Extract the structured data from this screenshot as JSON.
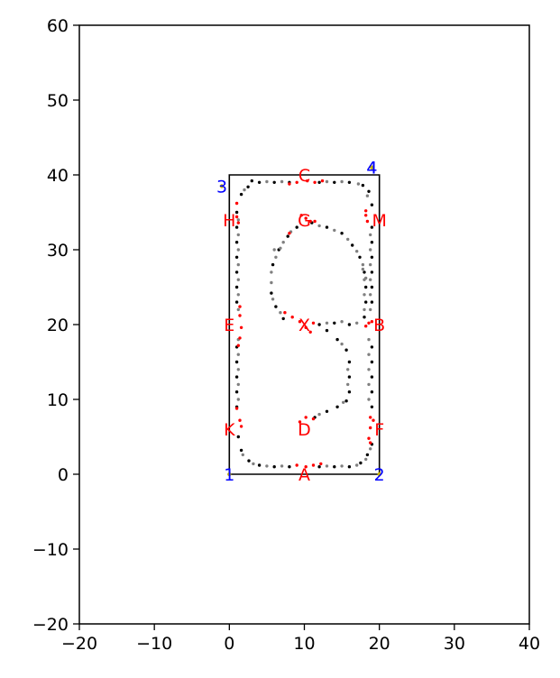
{
  "chart_data": {
    "type": "scatter",
    "xlim": [
      -20,
      40
    ],
    "ylim": [
      -20,
      60
    ],
    "xticks": [
      -20,
      -10,
      0,
      10,
      20,
      30,
      40
    ],
    "yticks": [
      -20,
      -10,
      0,
      10,
      20,
      30,
      40,
      50,
      60
    ],
    "xtick_labels": [
      "−20",
      "−10",
      "0",
      "10",
      "20",
      "30",
      "40"
    ],
    "ytick_labels": [
      "−20",
      "−10",
      "0",
      "10",
      "20",
      "30",
      "40",
      "50",
      "60"
    ],
    "grid": false,
    "legend": "none",
    "boundary": {
      "corners": [
        [
          0,
          0
        ],
        [
          20,
          0
        ],
        [
          20,
          40
        ],
        [
          0,
          40
        ]
      ],
      "color": "#000000"
    },
    "corner_labels": [
      {
        "text": "1",
        "x": 0,
        "y": 0
      },
      {
        "text": "2",
        "x": 20,
        "y": 0
      },
      {
        "text": "3",
        "x": -1,
        "y": 38.5
      },
      {
        "text": "4",
        "x": 19,
        "y": 41
      },
      {
        "text": "4",
        "x": 19,
        "y": 41
      }
    ],
    "corner_label_color": "#0000ff",
    "corner_marker_color": "#c8b400",
    "point_labels": [
      {
        "text": "A",
        "x": 10,
        "y": 0
      },
      {
        "text": "B",
        "x": 20,
        "y": 20
      },
      {
        "text": "C",
        "x": 10,
        "y": 40
      },
      {
        "text": "D",
        "x": 10,
        "y": 6
      },
      {
        "text": "E",
        "x": 0,
        "y": 20
      },
      {
        "text": "F",
        "x": 20,
        "y": 6
      },
      {
        "text": "G",
        "x": 10,
        "y": 34
      },
      {
        "text": "H",
        "x": 0,
        "y": 34
      },
      {
        "text": "K",
        "x": 0,
        "y": 6
      },
      {
        "text": "M",
        "x": 20,
        "y": 34
      },
      {
        "text": "X",
        "x": 10,
        "y": 20
      }
    ],
    "point_label_color": "#ff0000",
    "series": [
      {
        "color": "#000000",
        "points": [
          [
            1.0,
            35
          ],
          [
            1.0,
            33
          ],
          [
            1.0,
            31
          ],
          [
            1.0,
            29
          ],
          [
            1.0,
            27
          ],
          [
            1.0,
            25
          ],
          [
            1.0,
            23
          ],
          [
            1.0,
            17
          ],
          [
            1.0,
            15
          ],
          [
            1.0,
            13
          ],
          [
            1.0,
            11
          ],
          [
            1.0,
            9
          ],
          [
            1.2,
            5
          ],
          [
            1.6,
            3.2
          ],
          [
            2.6,
            1.8
          ],
          [
            4,
            1.2
          ],
          [
            6,
            1.0
          ],
          [
            8,
            1.0
          ],
          [
            12,
            1.0
          ],
          [
            14,
            1.0
          ],
          [
            16,
            1.0
          ],
          [
            17.5,
            1.5
          ],
          [
            18.4,
            2.6
          ],
          [
            19,
            4
          ],
          [
            19,
            9
          ],
          [
            19,
            11
          ],
          [
            19,
            13
          ],
          [
            19,
            15
          ],
          [
            19,
            17
          ],
          [
            19,
            23
          ],
          [
            19,
            25
          ],
          [
            19,
            27
          ],
          [
            19,
            29
          ],
          [
            19,
            31
          ],
          [
            19,
            33
          ],
          [
            19,
            36
          ],
          [
            18.6,
            37.8
          ],
          [
            17.8,
            38.6
          ],
          [
            16,
            39.0
          ],
          [
            14,
            39.0
          ],
          [
            12,
            39.0
          ],
          [
            8,
            39.0
          ],
          [
            6,
            39.0
          ],
          [
            4,
            39.0
          ],
          [
            2.5,
            38.4
          ],
          [
            1.6,
            37.4
          ],
          [
            3,
            39.2
          ],
          [
            11,
            33.6
          ],
          [
            13,
            33.0
          ],
          [
            15,
            32.2
          ],
          [
            16.4,
            30.6
          ],
          [
            17.4,
            29
          ],
          [
            18,
            27
          ],
          [
            18.2,
            25
          ],
          [
            18.2,
            23
          ],
          [
            18,
            21
          ],
          [
            16,
            20
          ],
          [
            14,
            20.2
          ],
          [
            12,
            20.0
          ],
          [
            13,
            19.2
          ],
          [
            14.4,
            18.0
          ],
          [
            15.6,
            16.6
          ],
          [
            16,
            15
          ],
          [
            16,
            13
          ],
          [
            16,
            11
          ],
          [
            15.6,
            9.8
          ],
          [
            14.4,
            9.0
          ],
          [
            13,
            8.4
          ],
          [
            11.4,
            7.6
          ],
          [
            7.2,
            20.8
          ],
          [
            6.2,
            22.4
          ],
          [
            5.6,
            24.2
          ],
          [
            5.8,
            28.0
          ],
          [
            6.6,
            30.0
          ],
          [
            7.8,
            31.8
          ],
          [
            9.0,
            33.0
          ]
        ]
      },
      {
        "color": "#808080",
        "points": [
          [
            1.2,
            34
          ],
          [
            1.2,
            32
          ],
          [
            1.2,
            30
          ],
          [
            1.2,
            28
          ],
          [
            1.2,
            26
          ],
          [
            1.2,
            24
          ],
          [
            1.2,
            22
          ],
          [
            1.2,
            18
          ],
          [
            1.2,
            16
          ],
          [
            1.2,
            14
          ],
          [
            1.2,
            12
          ],
          [
            1.2,
            10
          ],
          [
            1.8,
            2.6
          ],
          [
            3.2,
            1.4
          ],
          [
            5,
            1.1
          ],
          [
            7,
            1.1
          ],
          [
            13,
            1.1
          ],
          [
            15,
            1.1
          ],
          [
            17,
            1.2
          ],
          [
            18.2,
            2
          ],
          [
            18.8,
            3.4
          ],
          [
            18.6,
            10
          ],
          [
            18.6,
            12
          ],
          [
            18.6,
            14
          ],
          [
            18.6,
            16
          ],
          [
            18.6,
            18
          ],
          [
            18.8,
            22
          ],
          [
            18.8,
            24
          ],
          [
            18.8,
            26
          ],
          [
            18.8,
            28
          ],
          [
            18.8,
            30
          ],
          [
            18.8,
            32
          ],
          [
            18.4,
            37.2
          ],
          [
            17.2,
            38.8
          ],
          [
            15,
            39.1
          ],
          [
            13,
            39.1
          ],
          [
            7,
            39.1
          ],
          [
            5,
            39.1
          ],
          [
            2,
            38.0
          ],
          [
            12,
            33.2
          ],
          [
            14,
            32.6
          ],
          [
            15.8,
            31.4
          ],
          [
            17,
            29.8
          ],
          [
            17.8,
            28
          ],
          [
            18.0,
            26
          ],
          [
            18.0,
            24
          ],
          [
            18.0,
            22
          ],
          [
            17,
            20.2
          ],
          [
            15,
            20.4
          ],
          [
            13,
            20.2
          ],
          [
            15,
            17.4
          ],
          [
            15.8,
            14
          ],
          [
            15.8,
            12
          ],
          [
            15.2,
            9.6
          ],
          [
            12,
            8.0
          ],
          [
            6.8,
            21.6
          ],
          [
            5.8,
            23.4
          ],
          [
            5.6,
            25.6
          ],
          [
            5.6,
            27.0
          ],
          [
            6.2,
            29.0
          ],
          [
            6.0,
            30.0
          ],
          [
            7.2,
            31.0
          ],
          [
            8.2,
            32.4
          ],
          [
            6.8,
            30.2
          ],
          [
            17.8,
            27.4
          ],
          [
            18.2,
            26.2
          ]
        ]
      },
      {
        "color": "#ff0000",
        "points": [
          [
            1.0,
            36.2
          ],
          [
            1.0,
            34.4
          ],
          [
            1.2,
            33.6
          ],
          [
            1.4,
            22.4
          ],
          [
            1.4,
            21.2
          ],
          [
            1.6,
            19.6
          ],
          [
            1.4,
            18.2
          ],
          [
            1.2,
            17.2
          ],
          [
            1.0,
            8.8
          ],
          [
            1.4,
            7.2
          ],
          [
            1.6,
            6.4
          ],
          [
            9,
            1.2
          ],
          [
            10.2,
            1.0
          ],
          [
            11.2,
            1.2
          ],
          [
            12.2,
            1.4
          ],
          [
            9.0,
            39.0
          ],
          [
            10.4,
            39.2
          ],
          [
            11.4,
            39.0
          ],
          [
            12.4,
            39.2
          ],
          [
            8.0,
            38.8
          ],
          [
            18.2,
            35.2
          ],
          [
            18.2,
            34.6
          ],
          [
            18.4,
            33.8
          ],
          [
            18.6,
            20.2
          ],
          [
            19.0,
            20.4
          ],
          [
            18.2,
            19.8
          ],
          [
            18.8,
            7.6
          ],
          [
            19.2,
            7.2
          ],
          [
            18.8,
            6.2
          ],
          [
            18.6,
            4.8
          ],
          [
            18.8,
            4.2
          ],
          [
            10.2,
            34.2
          ],
          [
            9.6,
            34.6
          ],
          [
            10.8,
            33.8
          ],
          [
            11.4,
            33.8
          ],
          [
            8.0,
            32.2
          ],
          [
            7.4,
            21.6
          ],
          [
            8.4,
            21.0
          ],
          [
            9.4,
            20.4
          ],
          [
            10.2,
            19.6
          ],
          [
            10.8,
            19.0
          ],
          [
            11.2,
            20.2
          ],
          [
            10.2,
            7.6
          ],
          [
            11.2,
            7.4
          ],
          [
            9.4,
            7.0
          ]
        ]
      }
    ]
  }
}
